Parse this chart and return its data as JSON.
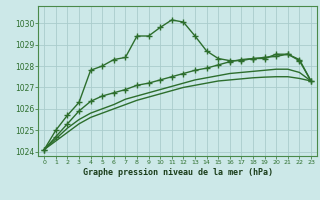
{
  "title": "Graphe pression niveau de la mer (hPa)",
  "bg_color": "#cce8e8",
  "grid_color": "#aacccc",
  "line_color_dark": "#2d6e2d",
  "line_color_light": "#3a8a3a",
  "x_min": -0.5,
  "x_max": 23.5,
  "y_min": 1023.8,
  "y_max": 1030.8,
  "yticks": [
    1024,
    1025,
    1026,
    1027,
    1028,
    1029,
    1030
  ],
  "series": [
    {
      "x": [
        0,
        1,
        2,
        3,
        4,
        5,
        6,
        7,
        8,
        9,
        10,
        11,
        12,
        13,
        14,
        15,
        16,
        17,
        18,
        19,
        20,
        21,
        22,
        23
      ],
      "y": [
        1024.1,
        1025.0,
        1025.7,
        1026.3,
        1027.8,
        1028.0,
        1028.3,
        1028.4,
        1029.4,
        1029.4,
        1029.8,
        1030.15,
        1030.05,
        1029.4,
        1028.7,
        1028.35,
        1028.25,
        1028.25,
        1028.35,
        1028.35,
        1028.55,
        1028.55,
        1028.25,
        1027.3
      ],
      "marker": "+",
      "markersize": 4,
      "linewidth": 1.0,
      "color": "#2d6e2d"
    },
    {
      "x": [
        0,
        1,
        2,
        3,
        4,
        5,
        6,
        7,
        8,
        9,
        10,
        11,
        12,
        13,
        14,
        15,
        16,
        17,
        18,
        19,
        20,
        21,
        22,
        23
      ],
      "y": [
        1024.1,
        1024.5,
        1024.9,
        1025.3,
        1025.6,
        1025.8,
        1026.0,
        1026.2,
        1026.4,
        1026.55,
        1026.7,
        1026.85,
        1027.0,
        1027.1,
        1027.2,
        1027.3,
        1027.35,
        1027.4,
        1027.45,
        1027.48,
        1027.5,
        1027.5,
        1027.42,
        1027.3
      ],
      "marker": null,
      "markersize": 0,
      "linewidth": 1.0,
      "color": "#2d6e2d"
    },
    {
      "x": [
        0,
        1,
        2,
        3,
        4,
        5,
        6,
        7,
        8,
        9,
        10,
        11,
        12,
        13,
        14,
        15,
        16,
        17,
        18,
        19,
        20,
        21,
        22,
        23
      ],
      "y": [
        1024.1,
        1024.6,
        1025.1,
        1025.5,
        1025.8,
        1026.0,
        1026.2,
        1026.45,
        1026.6,
        1026.75,
        1026.9,
        1027.05,
        1027.2,
        1027.35,
        1027.45,
        1027.55,
        1027.65,
        1027.7,
        1027.75,
        1027.8,
        1027.85,
        1027.85,
        1027.7,
        1027.3
      ],
      "marker": null,
      "markersize": 0,
      "linewidth": 1.0,
      "color": "#2d6e2d"
    },
    {
      "x": [
        0,
        1,
        2,
        3,
        4,
        5,
        6,
        7,
        8,
        9,
        10,
        11,
        12,
        13,
        14,
        15,
        16,
        17,
        18,
        19,
        20,
        21,
        22,
        23
      ],
      "y": [
        1024.1,
        1024.7,
        1025.3,
        1025.9,
        1026.35,
        1026.6,
        1026.75,
        1026.9,
        1027.1,
        1027.2,
        1027.35,
        1027.5,
        1027.65,
        1027.8,
        1027.9,
        1028.05,
        1028.2,
        1028.3,
        1028.35,
        1028.4,
        1028.45,
        1028.55,
        1028.3,
        1027.3
      ],
      "marker": "+",
      "markersize": 4,
      "linewidth": 1.0,
      "color": "#2d6e2d"
    }
  ]
}
